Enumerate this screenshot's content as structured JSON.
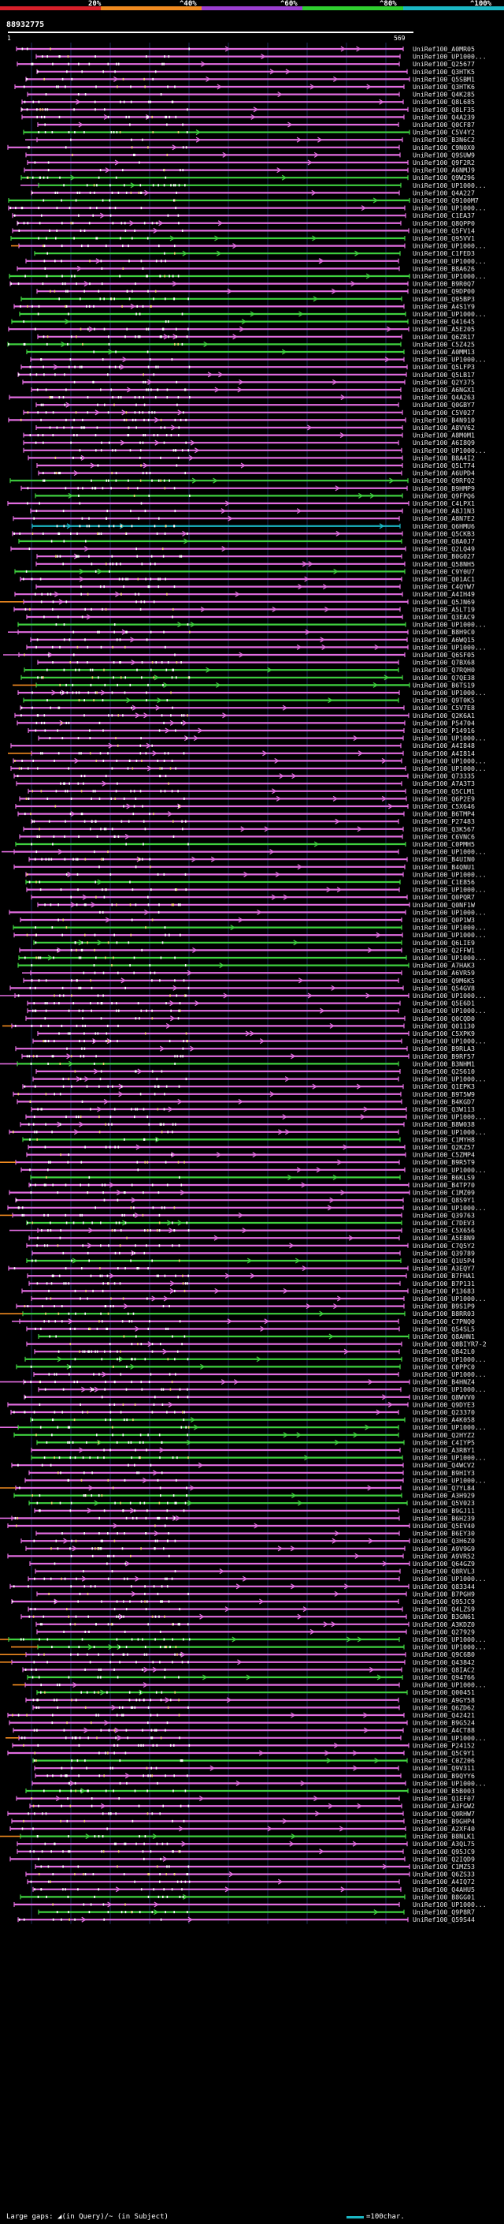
{
  "colors": {
    "seg_red": "#d8202a",
    "seg_orange": "#f08a20",
    "seg_purple": "#9b3fd0",
    "seg_green": "#2fcf2f",
    "seg_cyan": "#1bb7c4",
    "magenta": "#e26de0",
    "green": "#3fd13f",
    "cyan": "#1bb7c4",
    "orange": "#f08a20",
    "guide": "#1d2a5a"
  },
  "scale": {
    "labels": [
      "20%",
      "^40%",
      "^60%",
      "^80%",
      "^100%"
    ]
  },
  "query": {
    "name": "88932775",
    "start": "1",
    "end": "569"
  },
  "hits": [
    "UniRef100_A0MR05",
    "UniRef100_UP1000...",
    "UniRef100_Q25677",
    "UniRef100_Q3HTK5",
    "UniRef100_Q5SBM1",
    "UniRef100_Q3HTK6",
    "UniRef100_Q4K285",
    "UniRef100_Q8L685",
    "UniRef100_Q8LF35",
    "UniRef100_Q4A239",
    "UniRef100_Q0CF87",
    "UniRef100_C5V4Y2",
    "UniRef100_B3N6C2",
    "UniRef100_C9N0X0",
    "UniRef100_Q9SUW9",
    "UniRef100_Q9F2R2",
    "UniRef100_A6NMJ9",
    "UniRef100_Q9W296",
    "UniRef100_UP1000...",
    "UniRef100_Q4A227",
    "UniRef100_Q9100M7",
    "UniRef100_UP1000...",
    "UniRef100_C1EA37",
    "UniRef100_Q8QPP0",
    "UniRef100_Q5FV14",
    "UniRef100_Q95VV1",
    "UniRef100_UP1000...",
    "UniRef100_C1FED3",
    "UniRef100_UP1000...",
    "UniRef100_B8A626",
    "UniRef100_UP1000...",
    "UniRef100_B9R0Q7",
    "UniRef100_Q9DP00",
    "UniRef100_Q95BP3",
    "UniRef100_A4S1Y9",
    "UniRef100_UP1000...",
    "UniRef100_Q41645",
    "UniRef100_A5E205",
    "UniRef100_Q6ZR17",
    "UniRef100_C5Z425",
    "UniRef100_A0MM13",
    "UniRef100_UP1000...",
    "UniRef100_Q5LFP3",
    "UniRef100_Q5LB17",
    "UniRef100_Q2Y375",
    "UniRef100_A6NGX1",
    "UniRef100_Q4A263",
    "UniRef100_Q0GBY7",
    "UniRef100_C5V027",
    "UniRef100_B4N910",
    "UniRef100_A8VV62",
    "UniRef100_A8M0M1",
    "UniRef100_A6I8Q9",
    "UniRef100_UP1000...",
    "UniRef100_B8A4I2",
    "UniRef100_Q5LT74",
    "UniRef100_A6UPD4",
    "UniRef100_Q9RFQ2",
    "UniRef100_B9HMP9",
    "UniRef100_Q9FPQ6",
    "UniRef100_C4LPX1",
    "UniRef100_A8J1N3",
    "UniRef100_A8N7E2",
    "UniRef100_Q6HMU6",
    "UniRef100_Q5CKB3",
    "UniRef100_Q8A0J7",
    "UniRef100_Q2LQ49",
    "UniRef100_B0G027",
    "UniRef100_Q58NH5",
    "UniRef100_C9Y0U7",
    "UniRef100_Q01AC1",
    "UniRef100_C4QYW7",
    "UniRef100_A4IH49",
    "UniRef100_Q5JN69",
    "UniRef100_A5LT19",
    "UniRef100_Q3EAC9",
    "UniRef100_UP1000...",
    "UniRef100_B8H9C0",
    "UniRef100_A6WQ15",
    "UniRef100_UP1000...",
    "UniRef100_Q6SF05",
    "UniRef100_Q7BX68",
    "UniRef100_Q7RQH0",
    "UniRef100_Q7QE38",
    "UniRef100_B6TS19",
    "UniRef100_UP1000...",
    "UniRef100_Q9T0K5",
    "UniRef100_C5V7E8",
    "UniRef100_Q2K6A1",
    "UniRef100_P54704",
    "UniRef100_P14916",
    "UniRef100_UP1000...",
    "UniRef100_A4I848",
    "UniRef100_A4I814",
    "UniRef100_UP1000...",
    "UniRef100_UP1000...",
    "UniRef100_Q73335",
    "UniRef100_A7A3T3",
    "UniRef100_Q5CLM1",
    "UniRef100_Q6P2E9",
    "UniRef100_C5X646",
    "UniRef100_B6TMP4",
    "UniRef100_P27483",
    "UniRef100_Q3K567",
    "UniRef100_C6VNC6",
    "UniRef100_C0PMH5",
    "UniRef100_UP1000...",
    "UniRef100_B4UIN0",
    "UniRef100_B4QNU1",
    "UniRef100_UP1000...",
    "UniRef100_C1E856",
    "UniRef100_UP1000...",
    "UniRef100_Q0PQR7",
    "UniRef100_Q0NF1W",
    "UniRef100_UP1000...",
    "UniRef100_Q0P1W3",
    "UniRef100_UP1000...",
    "UniRef100_UP1000...",
    "UniRef100_Q6LIE9",
    "UniRef100_Q2FFW1",
    "UniRef100_UP1000...",
    "UniRef100_A7HAK3",
    "UniRef100_A6VR59",
    "UniRef100_Q9M6K5",
    "UniRef100_Q54GV8",
    "UniRef100_UP1000...",
    "UniRef100_Q5E6D1",
    "UniRef100_UP1000...",
    "UniRef100_Q0CQD0",
    "UniRef100_Q01130",
    "UniRef100_C5XPK9",
    "UniRef100_UP1000...",
    "UniRef100_B9RLA3",
    "UniRef100_B9RF57",
    "UniRef100_B3NHM1",
    "UniRef100_Q2S610",
    "UniRef100_UP1000...",
    "UniRef100_Q1EPK3",
    "UniRef100_B9T5W9",
    "UniRef100_B4KGD7",
    "UniRef100_Q3W113",
    "UniRef100_UP1000...",
    "UniRef100_B8W038",
    "UniRef100_UP1000...",
    "UniRef100_C1MYH8",
    "UniRef100_Q2KZ57",
    "UniRef100_C5ZMP4",
    "UniRef100_B9R5T9",
    "UniRef100_UP1000...",
    "UniRef100_B6KLS9",
    "UniRef100_B4TP70",
    "UniRef100_C1MZ09",
    "UniRef100_Q8S9Y1",
    "UniRef100_UP1000...",
    "UniRef100_Q39763",
    "UniRef100_C7DEV3",
    "UniRef100_C5X656",
    "UniRef100_A5E8N9",
    "UniRef100_C7Q5Y2",
    "UniRef100_Q39789",
    "UniRef100_Q1U5P4",
    "UniRef100_A3EQY7",
    "UniRef100_B7FHA1",
    "UniRef100_B7P131",
    "UniRef100_P13683",
    "UniRef100_UP1000...",
    "UniRef100_B9S1P9",
    "UniRef100_B8RR03",
    "UniRef100_C7PNQ0",
    "UniRef100_Q54SL5",
    "UniRef100_Q8AHN1",
    "UniRef100_Q8BIYR7-2",
    "UniRef100_Q842L0",
    "UniRef100_UP1000...",
    "UniRef100_C0PPC0",
    "UniRef100_UP1000...",
    "UniRef100_B4HNZ4",
    "UniRef100_UP1000...",
    "UniRef100_Q8WVV0",
    "UniRef100_Q9DYE3",
    "UniRef100_Q23370",
    "UniRef100_A4K058",
    "UniRef100_UP1000...",
    "UniRef100_Q2HYZ2",
    "UniRef100_C4IYP5",
    "UniRef100_A3RBY1",
    "UniRef100_UP1000...",
    "UniRef100_Q4WCV2",
    "UniRef100_B9HIY3",
    "UniRef100_UP1000...",
    "UniRef100_Q7YL84",
    "UniRef100_A3H929",
    "UniRef100_Q5V023",
    "UniRef100_B9GJ11",
    "UniRef100_B6H239",
    "UniRef100_Q5EV40",
    "UniRef100_B6EY30",
    "UniRef100_Q3H6Z0",
    "UniRef100_A9V9G9",
    "UniRef100_A9VR52",
    "UniRef100_Q64GZ9",
    "UniRef100_Q8RVL3",
    "UniRef100_UP1000...",
    "UniRef100_Q83344",
    "UniRef100_B7PGH9",
    "UniRef100_Q95JC9",
    "UniRef100_Q4LZS9",
    "UniRef100_B3GN61",
    "UniRef100_A3KDZ0",
    "UniRef100_Q27929",
    "UniRef100_UP1000...",
    "UniRef100_UP1000...",
    "UniRef100_Q9C6B0",
    "UniRef100_Q43842",
    "UniRef100_Q8IAC2",
    "UniRef100_Q94766",
    "UniRef100_UP1000...",
    "UniRef100_Q00451",
    "UniRef100_A9GY58",
    "UniRef100_Q6ZD62",
    "UniRef100_Q42421",
    "UniRef100_B9G524",
    "UniRef100_A4CT88",
    "UniRef100_UP1000...",
    "UniRef100_P24152",
    "UniRef100_Q5C9Y1",
    "UniRef100_C0Z206",
    "UniRef100_Q9V311",
    "UniRef100_B9QYY6",
    "UniRef100_UP1000...",
    "UniRef100_B5B003",
    "UniRef100_Q1EF07",
    "UniRef100_A3FGW2",
    "UniRef100_Q9RHW7",
    "UniRef100_B9GHP4",
    "UniRef100_A2XF40",
    "UniRef100_B8NLK1",
    "UniRef100_A3QL75",
    "UniRef100_Q95JC9",
    "UniRef100_Q2IQD9",
    "UniRef100_C1MZ53",
    "UniRef100_Q6ZS33",
    "UniRef100_A4IQ72",
    "UniRef100_Q4AHU5",
    "UniRef100_B8GG01",
    "UniRef100_UP1000...",
    "UniRef100_Q9P8R7",
    "UniRef100_Q59S44"
  ],
  "legend": {
    "gaps": "Large gaps: ◢(in Query)/~ (in Subject)",
    "scale": "=100char."
  }
}
